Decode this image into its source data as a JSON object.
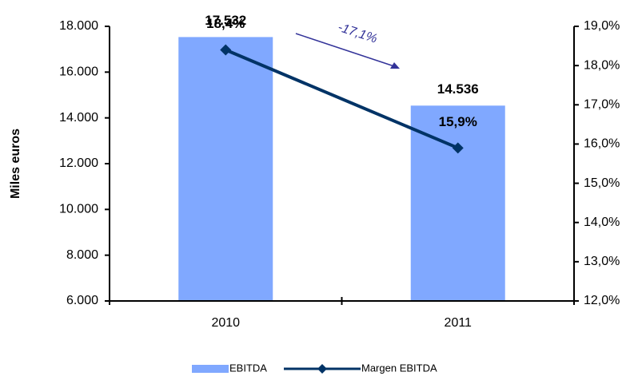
{
  "chart_data": {
    "type": "bar",
    "y_label": "Miles euros",
    "categories": [
      "2010",
      "2011"
    ],
    "series": [
      {
        "name": "EBITDA",
        "type": "bar",
        "color": "#80a8ff",
        "values": [
          17532,
          14536
        ],
        "value_labels": [
          "17.532",
          "14.536"
        ]
      },
      {
        "name": "Margen EBITDA",
        "type": "line",
        "axis": "y2",
        "color": "#003366",
        "values": [
          18.4,
          15.9
        ],
        "value_labels": [
          "18,4%",
          "15,9%"
        ]
      }
    ],
    "ylim": [
      6000,
      18000
    ],
    "yticks": [
      {
        "value": 6000,
        "label": "6.000"
      },
      {
        "value": 8000,
        "label": "8.000"
      },
      {
        "value": 10000,
        "label": "10.000"
      },
      {
        "value": 12000,
        "label": "12.000"
      },
      {
        "value": 14000,
        "label": "14.000"
      },
      {
        "value": 16000,
        "label": "16.000"
      },
      {
        "value": 18000,
        "label": "18.000"
      }
    ],
    "y2lim": [
      12,
      19
    ],
    "y2ticks": [
      {
        "value": 12,
        "label": "12,0%"
      },
      {
        "value": 13,
        "label": "13,0%"
      },
      {
        "value": 14,
        "label": "14,0%"
      },
      {
        "value": 15,
        "label": "15,0%"
      },
      {
        "value": 16,
        "label": "16,0%"
      },
      {
        "value": 17,
        "label": "17,0%"
      },
      {
        "value": 18,
        "label": "18,0%"
      },
      {
        "value": 19,
        "label": "19,0%"
      }
    ],
    "annotations": [
      {
        "text": "-17,1%"
      }
    ],
    "legend": "bottom"
  }
}
